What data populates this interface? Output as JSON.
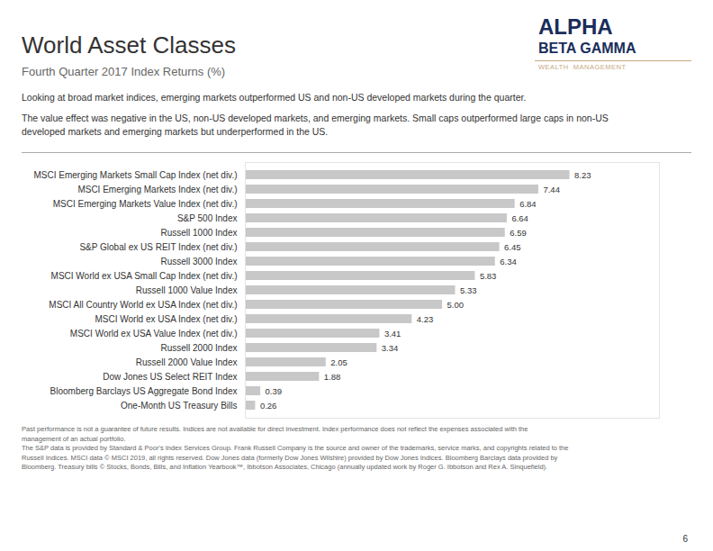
{
  "chart_data": {
    "type": "bar",
    "orientation": "horizontal",
    "title": "World Asset Classes",
    "subtitle": "Fourth Quarter 2017 Index Returns (%)",
    "annotations": [
      "Looking at broad market indices, emerging markets outperformed US and non-US developed markets during the quarter.",
      "The value effect was negative in the US, non-US developed markets, and emerging markets. Small caps outperformed large caps in non-US\ndeveloped markets and emerging markets but underperformed in the US.",
      "ALPHA",
      "BETA GAMMA",
      "WEALTH  MANAGEMENT",
      "Past performance is not a guarantee of future results. Indices are not available for direct investment. Index performance does not reflect the expenses associated with the\nmanagement of an actual portfolio.\nThe S&P data is provided by Standard & Poor's Index Services Group. Frank Russell Company is the source and owner of the trademarks, service marks, and copyrights related to the\nRussell Indices. MSCI data © MSCI 2019, all rights reserved. Dow Jones data (formerly Dow Jones Wilshire) provided by Dow Jones Indices. Bloomberg Barclays data provided by\nBloomberg. Treasury bills © Stocks, Bonds, Bills, and Inflation Yearbook™, Ibbotson Associates, Chicago (annually updated work by Roger G. Ibbotson and Rex A. Sinquefield).",
      "6"
    ],
    "categories": [
      "MSCI Emerging Markets Small Cap Index (net div.)",
      "MSCI Emerging Markets Index (net div.)",
      "MSCI Emerging Markets Value Index (net div.)",
      "S&P 500 Index",
      "Russell 1000 Index",
      "S&P Global ex US REIT Index (net div.)",
      "Russell 3000 Index",
      "MSCI World ex USA Small Cap Index (net div.)",
      "Russell 1000 Value Index",
      "MSCI All Country World ex USA Index (net div.)",
      "MSCI World ex USA Index (net div.)",
      "MSCI World ex USA Value Index (net div.)",
      "Russell 2000 Index",
      "Russell 2000 Value Index",
      "Dow Jones US Select REIT Index",
      "Bloomberg Barclays US Aggregate Bond Index",
      "One-Month US Treasury Bills"
    ],
    "values": [
      8.23,
      7.44,
      6.84,
      6.64,
      6.59,
      6.45,
      6.34,
      5.83,
      5.33,
      5.0,
      4.23,
      3.41,
      3.34,
      2.05,
      1.88,
      0.39,
      0.26
    ],
    "value_labels": [
      "8.23",
      "7.44",
      "6.84",
      "6.64",
      "6.59",
      "6.45",
      "6.34",
      "5.83",
      "5.33",
      "5.00",
      "4.23",
      "3.41",
      "3.34",
      "2.05",
      "1.88",
      "0.39",
      "0.26"
    ],
    "color": "#c8c8c8",
    "xlim": [
      0,
      10.5
    ],
    "data_labels": true,
    "tick_labels": "y",
    "grid": false
  }
}
